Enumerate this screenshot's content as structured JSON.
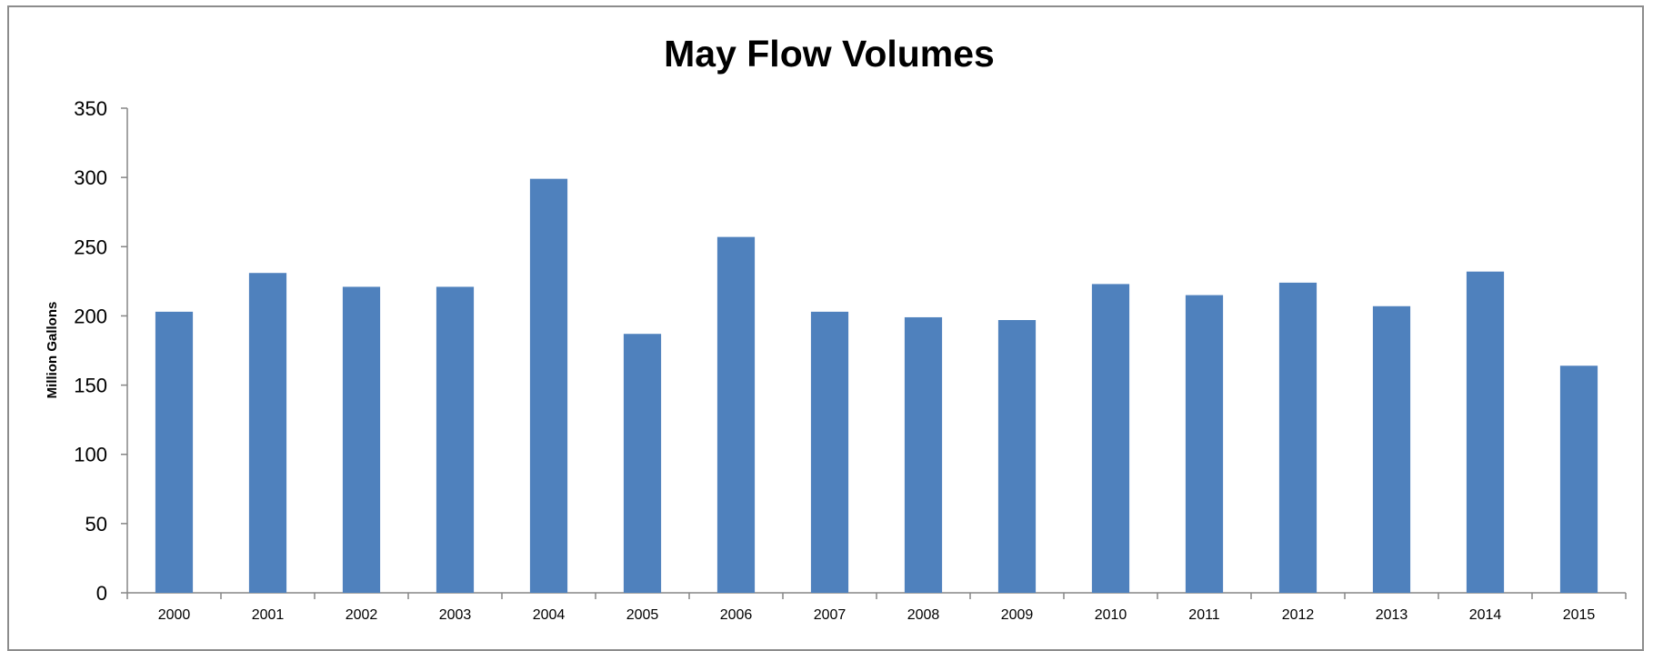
{
  "chart_data": {
    "type": "bar",
    "title": "May Flow Volumes",
    "xlabel": "",
    "ylabel": "Million Gallons",
    "categories": [
      "2000",
      "2001",
      "2002",
      "2003",
      "2004",
      "2005",
      "2006",
      "2007",
      "2008",
      "2009",
      "2010",
      "2011",
      "2012",
      "2013",
      "2014",
      "2015"
    ],
    "values": [
      203,
      231,
      221,
      221,
      299,
      187,
      257,
      203,
      199,
      197,
      223,
      215,
      224,
      207,
      232,
      164
    ],
    "ylim": [
      0,
      350
    ],
    "yticks": [
      "0",
      "50",
      "100",
      "150",
      "200",
      "250",
      "300",
      "350"
    ],
    "grid": false,
    "legend": "none",
    "bar_color": "#4f81bd",
    "axis_color": "#868686"
  }
}
